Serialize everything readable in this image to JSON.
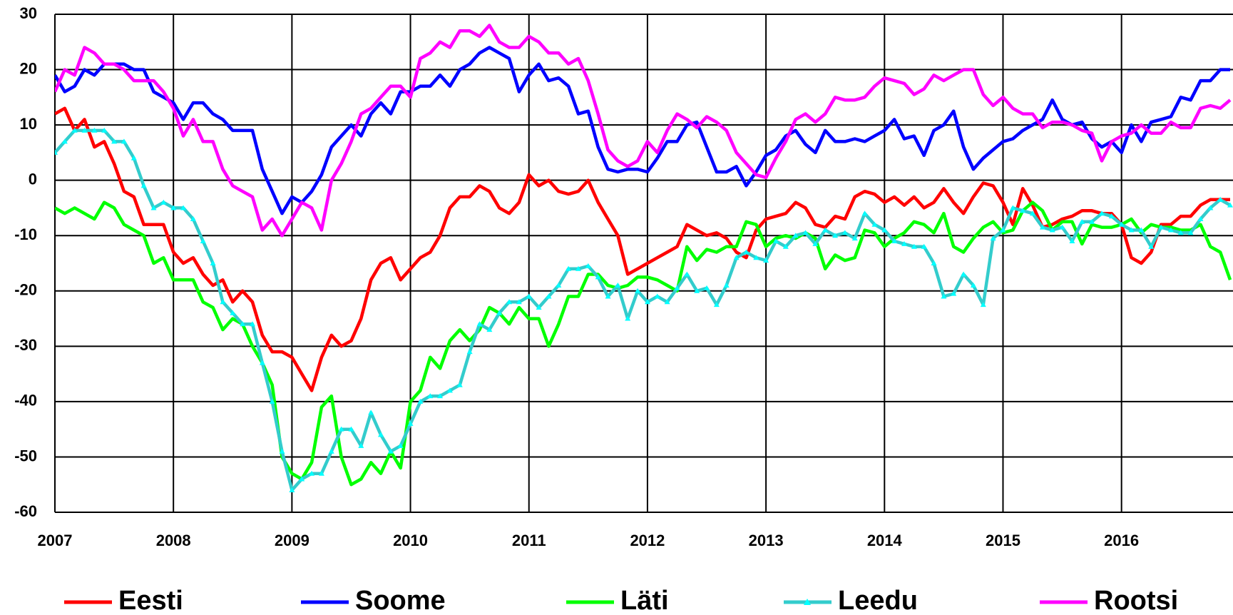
{
  "chart_data": {
    "type": "line",
    "categories": [
      "2007",
      null,
      null,
      null,
      null,
      null,
      null,
      null,
      null,
      null,
      null,
      null,
      "2008",
      null,
      null,
      null,
      null,
      null,
      null,
      null,
      null,
      null,
      null,
      null,
      "2009",
      null,
      null,
      null,
      null,
      null,
      null,
      null,
      null,
      null,
      null,
      null,
      "2010",
      null,
      null,
      null,
      null,
      null,
      null,
      null,
      null,
      null,
      null,
      null,
      "2011",
      null,
      null,
      null,
      null,
      null,
      null,
      null,
      null,
      null,
      null,
      null,
      "2012",
      null,
      null,
      null,
      null,
      null,
      null,
      null,
      null,
      null,
      null,
      null,
      "2013",
      null,
      null,
      null,
      null,
      null,
      null,
      null,
      null,
      null,
      null,
      null,
      "2014",
      null,
      null,
      null,
      null,
      null,
      null,
      null,
      null,
      null,
      null,
      null,
      "2015",
      null,
      null,
      null,
      null,
      null,
      null,
      null,
      null,
      null,
      null,
      null,
      "2016",
      null,
      null,
      null,
      null,
      null,
      null,
      null,
      null,
      null,
      null,
      null
    ],
    "ylim": [
      -60,
      30
    ],
    "yticks": [
      -60,
      -50,
      -40,
      -30,
      -20,
      -10,
      0,
      10,
      20,
      30
    ],
    "grid": true,
    "legend": "bottom",
    "series": [
      {
        "name": "Eesti",
        "color": "#ff0000",
        "values": [
          12,
          13,
          9,
          11,
          6,
          7,
          3,
          -2,
          -3,
          -8,
          -8,
          -8,
          -13,
          -15,
          -14,
          -17,
          -19,
          -18,
          -22,
          -20,
          -22,
          -28,
          -31,
          -31,
          -32,
          -35,
          -38,
          -32,
          -28,
          -30,
          -29,
          -25,
          -18,
          -15,
          -14,
          -18,
          -16,
          -14,
          -13,
          -10,
          -5,
          -3,
          -3,
          -1,
          -2,
          -5,
          -6,
          -4,
          1,
          -1,
          0,
          -2,
          -2.5,
          -2,
          0,
          -4,
          -7,
          -10,
          -17,
          -16,
          -15,
          -14,
          -13,
          -12,
          -8,
          -9,
          -10,
          -9.5,
          -10.5,
          -13,
          -14,
          -9,
          -7,
          -6.5,
          -6,
          -4,
          -5,
          -8,
          -8.5,
          -6.5,
          -7,
          -3,
          -2,
          -2.5,
          -4,
          -3,
          -4.5,
          -3,
          -5,
          -4,
          -1.5,
          -4,
          -6,
          -3,
          -0.5,
          -1,
          -4,
          -8,
          -1.5,
          -4.5,
          -8.5,
          -8,
          -7,
          -6.5,
          -5.5,
          -5.5,
          -6,
          -6,
          -8,
          -14,
          -15,
          -13,
          -8,
          -8,
          -6.5,
          -6.5,
          -4.5,
          -3.5,
          -3.5,
          -3.5
        ]
      },
      {
        "name": "Soome",
        "color": "#0000ff",
        "values": [
          19,
          16,
          17,
          20,
          19,
          21,
          21,
          21,
          20,
          20,
          16,
          15,
          14,
          11,
          14,
          14,
          12,
          11,
          9,
          9,
          9,
          2,
          -2,
          -6,
          -3,
          -4,
          -2,
          1,
          6,
          8,
          10,
          8,
          12,
          14,
          12,
          16,
          16,
          17,
          17,
          19,
          17,
          20,
          21,
          23,
          24,
          23,
          22,
          16,
          19,
          21,
          18,
          18.5,
          17,
          12,
          12.5,
          6,
          2,
          1.5,
          2,
          2,
          1.5,
          4,
          7,
          7,
          10,
          10.5,
          6,
          1.5,
          1.5,
          2.5,
          -1,
          1.5,
          4.5,
          5.5,
          8,
          9,
          6.5,
          5,
          9,
          7,
          7,
          7.5,
          7,
          8,
          9,
          11,
          7.5,
          8,
          4.5,
          9,
          10,
          12.5,
          6,
          2,
          4,
          5.5,
          7,
          7.5,
          9,
          10,
          11,
          14.5,
          11,
          10,
          10.5,
          7.5,
          6,
          7,
          5,
          10,
          7,
          10.5,
          11,
          11.5,
          15,
          14.5,
          18,
          18,
          20,
          20
        ]
      },
      {
        "name": "Läti",
        "color": "#00ff00",
        "values": [
          -5,
          -6,
          -5,
          -6,
          -7,
          -4,
          -5,
          -8,
          -9,
          -10,
          -15,
          -14,
          -18,
          -18,
          -18,
          -22,
          -23,
          -27,
          -25,
          -26,
          -30,
          -33,
          -37,
          -50,
          -53,
          -54,
          -51,
          -41,
          -39,
          -50,
          -55,
          -54,
          -51,
          -53,
          -49,
          -52,
          -40,
          -38,
          -32,
          -34,
          -29,
          -27,
          -29,
          -27,
          -23,
          -24,
          -26,
          -23,
          -25,
          -25,
          -30,
          -26,
          -21,
          -21,
          -17,
          -17,
          -19,
          -19.5,
          -19,
          -17.5,
          -17.5,
          -18,
          -19,
          -20,
          -12,
          -14.5,
          -12.5,
          -13,
          -12,
          -12,
          -7.5,
          -8,
          -12,
          -10.5,
          -10,
          -10.5,
          -9.5,
          -10.5,
          -16,
          -13.5,
          -14.5,
          -14,
          -9,
          -9.5,
          -12,
          -10.5,
          -9.5,
          -7.5,
          -8,
          -9.5,
          -6,
          -12,
          -13,
          -10.5,
          -8.5,
          -7.5,
          -9.5,
          -9,
          -5.5,
          -4,
          -5.5,
          -9,
          -7.5,
          -7.5,
          -11.5,
          -8,
          -8.5,
          -8.5,
          -8,
          -7,
          -9.5,
          -8,
          -8.5,
          -8.5,
          -9,
          -9,
          -8,
          -12,
          -13,
          -18
        ]
      },
      {
        "name": "Leedu",
        "color": "#33cccc",
        "marker": "#00ffff",
        "values": [
          5,
          7,
          9,
          9,
          9,
          9,
          7,
          7,
          4,
          -1,
          -5,
          -4,
          -5,
          -5,
          -7,
          -11,
          -15,
          -22,
          -24,
          -26,
          -26,
          -33,
          -40,
          -49,
          -56,
          -54,
          -53,
          -53,
          -49,
          -45,
          -45,
          -48,
          -42,
          -46,
          -49,
          -48,
          -44,
          -40,
          -39,
          -39,
          -38,
          -37,
          -31,
          -26,
          -27,
          -24,
          -22,
          -22,
          -21,
          -23,
          -21,
          -19,
          -16,
          -16,
          -15.5,
          -17.5,
          -21,
          -19,
          -25,
          -20,
          -22,
          -21,
          -22,
          -19.5,
          -17,
          -20,
          -19.5,
          -22.5,
          -19,
          -14,
          -13,
          -14,
          -14.5,
          -11,
          -12,
          -10,
          -9.5,
          -11.5,
          -9,
          -10,
          -9.5,
          -10.5,
          -6,
          -8,
          -9,
          -11,
          -11.5,
          -12,
          -12,
          -15,
          -21,
          -20.5,
          -17,
          -19,
          -22.5,
          -10.5,
          -9,
          -5,
          -5.5,
          -6,
          -8.5,
          -9,
          -8.5,
          -11,
          -7.5,
          -7.5,
          -6,
          -6.5,
          -8,
          -9,
          -9,
          -12,
          -8.5,
          -9,
          -9.5,
          -9.5,
          -7,
          -5,
          -3.5,
          -4.5
        ]
      },
      {
        "name": "Rootsi",
        "color": "#ff00ff",
        "values": [
          16,
          20,
          19,
          24,
          23,
          21,
          21,
          20,
          18,
          18,
          18,
          16,
          13,
          8,
          11,
          7,
          7,
          2,
          -1,
          -2,
          -3,
          -9,
          -7,
          -10,
          -7,
          -4,
          -5,
          -9,
          0,
          3,
          7,
          12,
          13,
          15,
          17,
          17,
          15,
          22,
          23,
          25,
          24,
          27,
          27,
          26,
          28,
          25,
          24,
          24,
          26,
          25,
          23,
          23,
          21,
          22,
          18,
          12,
          5.5,
          3.5,
          2.5,
          3.5,
          7,
          5,
          9,
          12,
          11,
          9.5,
          11.5,
          10.5,
          9,
          5,
          3,
          1,
          0.5,
          4,
          7,
          11,
          12,
          10.5,
          12,
          15,
          14.5,
          14.5,
          15,
          17,
          18.5,
          18,
          17.5,
          15.5,
          16.5,
          19,
          18,
          19,
          20,
          20,
          15.5,
          13.5,
          15,
          13,
          12,
          12,
          9.5,
          10.5,
          10.5,
          10,
          9,
          8.5,
          3.5,
          7,
          8,
          8.5,
          10,
          8.5,
          8.5,
          10.5,
          9.5,
          9.5,
          13,
          13.5,
          13,
          14.5
        ]
      }
    ]
  }
}
